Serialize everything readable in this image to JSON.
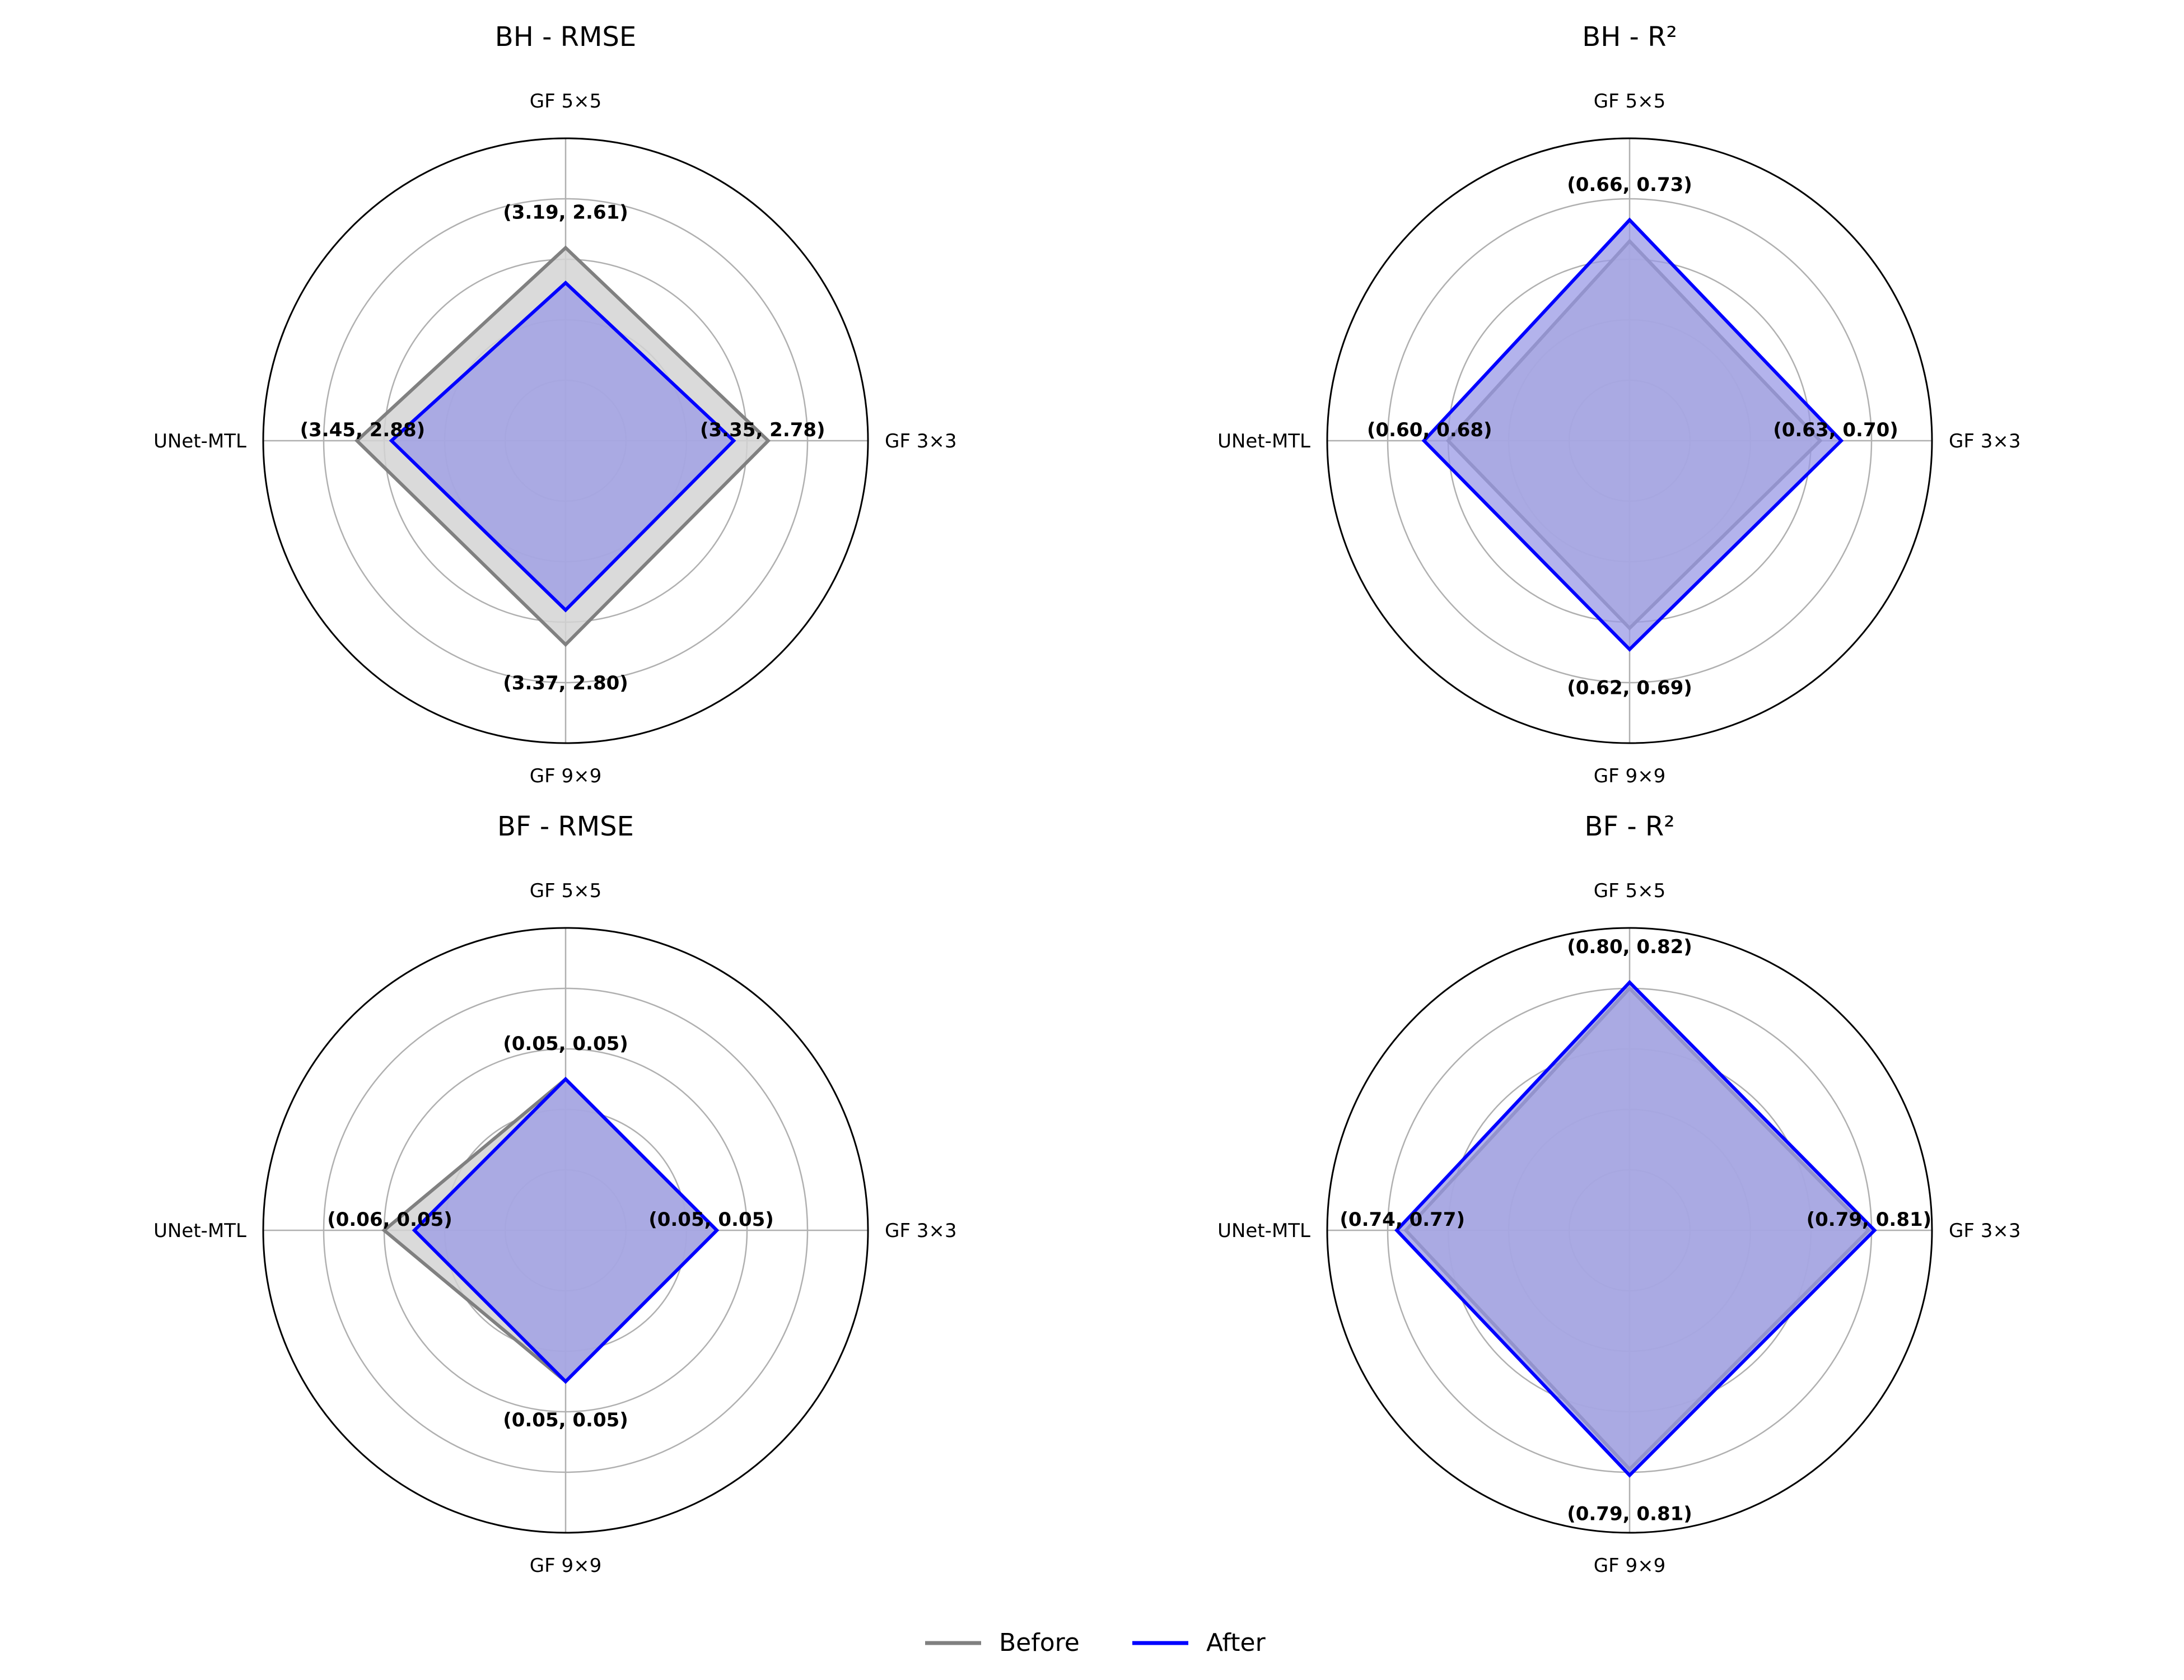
{
  "chart_data": [
    {
      "type": "radar",
      "title": "BH - RMSE",
      "categories": [
        "GF 3×3",
        "GF 5×5",
        "UNet-MTL",
        "GF 9×9"
      ],
      "series": [
        {
          "name": "Before",
          "values": [
            3.35,
            3.19,
            3.45,
            3.37
          ]
        },
        {
          "name": "After",
          "values": [
            2.78,
            2.61,
            2.88,
            2.8
          ]
        }
      ],
      "point_labels": [
        "(3.35, 2.78)",
        "(3.19, 2.61)",
        "(3.45, 2.88)",
        "(3.37, 2.80)"
      ],
      "rlim": [
        0,
        5
      ],
      "grid": true
    },
    {
      "type": "radar",
      "title": "BH - R²",
      "categories": [
        "GF 3×3",
        "GF 5×5",
        "UNet-MTL",
        "GF 9×9"
      ],
      "series": [
        {
          "name": "Before",
          "values": [
            0.63,
            0.66,
            0.6,
            0.62
          ]
        },
        {
          "name": "After",
          "values": [
            0.7,
            0.73,
            0.68,
            0.69
          ]
        }
      ],
      "point_labels": [
        "(0.63, 0.70)",
        "(0.66, 0.73)",
        "(0.60, 0.68)",
        "(0.62, 0.69)"
      ],
      "rlim": [
        0,
        1
      ],
      "grid": true
    },
    {
      "type": "radar",
      "title": "BF - RMSE",
      "categories": [
        "GF 3×3",
        "GF 5×5",
        "UNet-MTL",
        "GF 9×9"
      ],
      "series": [
        {
          "name": "Before",
          "values": [
            0.05,
            0.05,
            0.06,
            0.05
          ]
        },
        {
          "name": "After",
          "values": [
            0.05,
            0.05,
            0.05,
            0.05
          ]
        }
      ],
      "point_labels": [
        "(0.05, 0.05)",
        "(0.05, 0.05)",
        "(0.06, 0.05)",
        "(0.05, 0.05)"
      ],
      "rlim": [
        0,
        0.1
      ],
      "grid": true
    },
    {
      "type": "radar",
      "title": "BF - R²",
      "categories": [
        "GF 3×3",
        "GF 5×5",
        "UNet-MTL",
        "GF 9×9"
      ],
      "series": [
        {
          "name": "Before",
          "values": [
            0.79,
            0.8,
            0.74,
            0.79
          ]
        },
        {
          "name": "After",
          "values": [
            0.81,
            0.82,
            0.77,
            0.81
          ]
        }
      ],
      "point_labels": [
        "(0.79, 0.81)",
        "(0.80, 0.82)",
        "(0.74, 0.77)",
        "(0.79, 0.81)"
      ],
      "rlim": [
        0,
        1
      ],
      "grid": true
    }
  ],
  "legend": {
    "placement": "bottom-center",
    "items": [
      {
        "label": "Before",
        "color": "#808080"
      },
      {
        "label": "After",
        "color": "#0000ff"
      }
    ]
  },
  "colors": {
    "before_line": "#808080",
    "before_fill": "#d3d3d3",
    "after_line": "#0000ff",
    "after_fill": "#9999e6",
    "grid": "#b0b0b0",
    "outer_ring": "#000000"
  }
}
